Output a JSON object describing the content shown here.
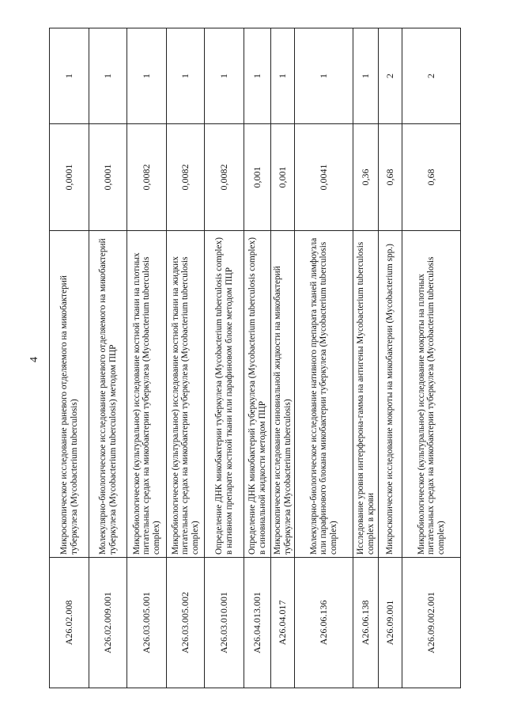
{
  "page_number": "4",
  "rows": [
    {
      "code": "А26.02.008",
      "description": "Микроскопическое исследование раневого отделяемого на микобактерий туберкулеза (Mycobacterium tuberculosis)",
      "value": "0,0001",
      "count": "1"
    },
    {
      "code": "А26.02.009.001",
      "description": "Молекулярно-биологическое исследование раневого отделяемого на микобактерий туберкулеза (Mycobacterium tuberculosis) методом ПЦР",
      "value": "0,0001",
      "count": "1"
    },
    {
      "code": "А26.03.005.001",
      "description": "Микробиологическое (культуральное) исследование костной ткани на плотных питательных средах на микобактерии туберкулеза (Mycobacterium tuberculosis complex)",
      "value": "0,0082",
      "count": "1"
    },
    {
      "code": "А26.03.005.002",
      "description": "Микробиологическое (культуральное) исследование костной ткани на жидких питательных средах на микобактерии туберкулеза (Mycobacterium tuberculosis complex)",
      "value": "0,0082",
      "count": "1"
    },
    {
      "code": "А26.03.010.001",
      "description": "Определение ДНК микобактерии туберкулеза (Mycobacterium tuberculosis complex) в нативном препарате костной ткани или парафиновом блоке методом ПЦР",
      "value": "0,0082",
      "count": "1"
    },
    {
      "code": "А26.04.013.001",
      "description": "Определение ДНК микобактерий туберкулеза (Mycobacterium tuberculosis complex) в синовиальной жидкости методом ПЦР",
      "value": "0,001",
      "count": "1"
    },
    {
      "code": "А26.04.017",
      "description": "Микроскопическое исследование синовиальной жидкости на микобактерий туберкулеза (Mycobacterium tuberculosis)",
      "value": "0,001",
      "count": "1"
    },
    {
      "code": "А26.06.136",
      "description": "Молекулярно-биологическое исследование нативного препарата тканей лимфоузла или парафинового блокана микобактерии туберкулеза (Mycobacterium tuberculosis complex)",
      "value": "0,0041",
      "count": "1"
    },
    {
      "code": "А26.06.138",
      "description": "Исследование уровня интерферона-гамма на антигены Mycobacterium tuberculosis complex в крови",
      "value": "0,36",
      "count": "1"
    },
    {
      "code": "А26.09.001",
      "description": "Микроскопическое исследование мокроты на микобактерии (Mycobacterium spp.)",
      "value": "0,68",
      "count": "2"
    },
    {
      "code": "А26.09.002.001",
      "description": "Микробиологическое (культуральное) исследование мокроты на плотных питательных средах на микобактерии туберкулеза (Mycobacterium tuberculosis complex)",
      "value": "0,68",
      "count": "2"
    }
  ]
}
